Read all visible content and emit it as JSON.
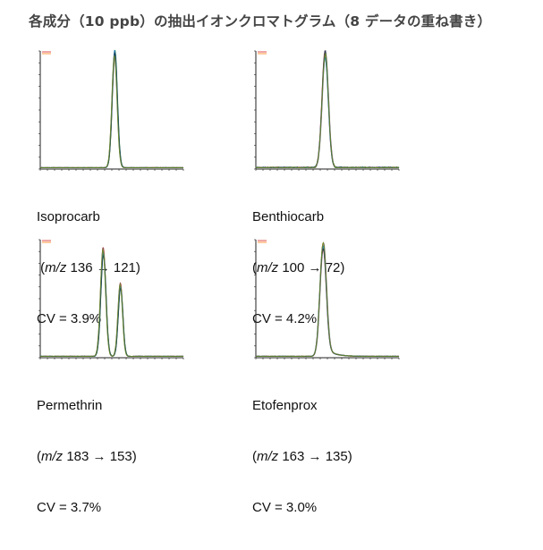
{
  "title": "各成分（10 ppb）の抽出イオンクロマトグラム（8 データの重ね書き）",
  "series_colors": [
    "#d62728",
    "#ff7f0e",
    "#2ca02c",
    "#8c564b",
    "#9467bd",
    "#1f77b4",
    "#17365d",
    "#6b8e23"
  ],
  "chart_data": [
    {
      "type": "line",
      "compound": "Isoprocarb",
      "mz_prefix": " (",
      "mz_label": "m/z",
      "transition": "136 → 121)",
      "cv_text": "CV = 3.9%",
      "peaks": [
        {
          "position": 0.52,
          "height": 1.0,
          "width": 0.018
        }
      ],
      "tail": 0.0,
      "noise": 0.003
    },
    {
      "type": "line",
      "compound": "Benthiocarb",
      "mz_prefix": "(",
      "mz_label": "m/z",
      "transition": "100 → 72)",
      "cv_text": "CV = 4.2%",
      "peaks": [
        {
          "position": 0.485,
          "height": 1.0,
          "width": 0.022
        }
      ],
      "tail": 0.0,
      "noise": 0.012
    },
    {
      "type": "line",
      "compound": "Permethrin",
      "mz_prefix": "(",
      "mz_label": "m/z",
      "transition": "183 → 153)",
      "cv_text": "CV = 3.7%",
      "peaks": [
        {
          "position": 0.44,
          "height": 0.92,
          "width": 0.018
        },
        {
          "position": 0.56,
          "height": 0.62,
          "width": 0.016
        }
      ],
      "tail": 0.0,
      "noise": 0.004
    },
    {
      "type": "line",
      "compound": "Etofenprox",
      "mz_prefix": "(",
      "mz_label": "m/z",
      "transition": "163 → 135)",
      "cv_text": "CV = 3.0%",
      "peaks": [
        {
          "position": 0.47,
          "height": 0.96,
          "width": 0.022
        }
      ],
      "tail": 0.09,
      "noise": 0.004
    }
  ]
}
